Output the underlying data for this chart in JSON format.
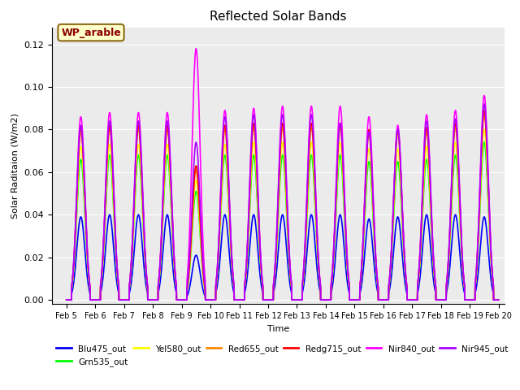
{
  "title": "Reflected Solar Bands",
  "xlabel": "Time",
  "ylabel": "Solar Raditaion (W/m2)",
  "xlim_days": [
    4.5,
    20.2
  ],
  "ylim": [
    -0.002,
    0.128
  ],
  "xtick_labels": [
    "Feb 5",
    "Feb 6",
    "Feb 7",
    "Feb 8",
    "Feb 9",
    "Feb 10",
    "Feb 11",
    "Feb 12",
    "Feb 13",
    "Feb 14",
    "Feb 15",
    "Feb 16",
    "Feb 17",
    "Feb 18",
    "Feb 19",
    "Feb 20"
  ],
  "xtick_positions": [
    5,
    6,
    7,
    8,
    9,
    10,
    11,
    12,
    13,
    14,
    15,
    16,
    17,
    18,
    19,
    20
  ],
  "annotation_text": "WP_arable",
  "series": {
    "Blu475_out": {
      "color": "#0000ff",
      "lw": 1.2,
      "zorder": 3
    },
    "Grn535_out": {
      "color": "#00ff00",
      "lw": 1.2,
      "zorder": 4
    },
    "Yel580_out": {
      "color": "#ffff00",
      "lw": 1.2,
      "zorder": 5
    },
    "Red655_out": {
      "color": "#ff8800",
      "lw": 1.2,
      "zorder": 6
    },
    "Redg715_out": {
      "color": "#ff0000",
      "lw": 1.2,
      "zorder": 7
    },
    "Nir840_out": {
      "color": "#ff00ff",
      "lw": 1.2,
      "zorder": 8
    },
    "Nir945_out": {
      "color": "#aa00ff",
      "lw": 1.2,
      "zorder": 9
    }
  },
  "legend_order": [
    "Blu475_out",
    "Grn535_out",
    "Yel580_out",
    "Red655_out",
    "Redg715_out",
    "Nir840_out",
    "Nir945_out"
  ],
  "bg_color": "#ebebeb",
  "fig_bg": "#ffffff",
  "nir840_amps": [
    0.086,
    0.088,
    0.088,
    0.088,
    0.118,
    0.089,
    0.09,
    0.091,
    0.091,
    0.091,
    0.086,
    0.082,
    0.087,
    0.089,
    0.096
  ],
  "nir945_amps": [
    0.082,
    0.084,
    0.084,
    0.084,
    0.074,
    0.086,
    0.087,
    0.087,
    0.087,
    0.083,
    0.079,
    0.08,
    0.084,
    0.085,
    0.092
  ],
  "redg_amps": [
    0.081,
    0.082,
    0.082,
    0.082,
    0.063,
    0.082,
    0.083,
    0.083,
    0.083,
    0.083,
    0.08,
    0.08,
    0.081,
    0.083,
    0.089
  ],
  "red_amps": [
    0.079,
    0.08,
    0.08,
    0.08,
    0.061,
    0.08,
    0.081,
    0.081,
    0.081,
    0.081,
    0.078,
    0.078,
    0.079,
    0.081,
    0.087
  ],
  "yel_amps": [
    0.072,
    0.073,
    0.073,
    0.073,
    0.056,
    0.073,
    0.074,
    0.074,
    0.074,
    0.074,
    0.071,
    0.071,
    0.072,
    0.074,
    0.08
  ],
  "grn_amps": [
    0.066,
    0.068,
    0.068,
    0.068,
    0.051,
    0.068,
    0.068,
    0.068,
    0.068,
    0.068,
    0.065,
    0.065,
    0.066,
    0.068,
    0.074
  ],
  "blu_amps": [
    0.039,
    0.04,
    0.04,
    0.04,
    0.021,
    0.04,
    0.04,
    0.04,
    0.04,
    0.04,
    0.038,
    0.039,
    0.04,
    0.04,
    0.039
  ]
}
